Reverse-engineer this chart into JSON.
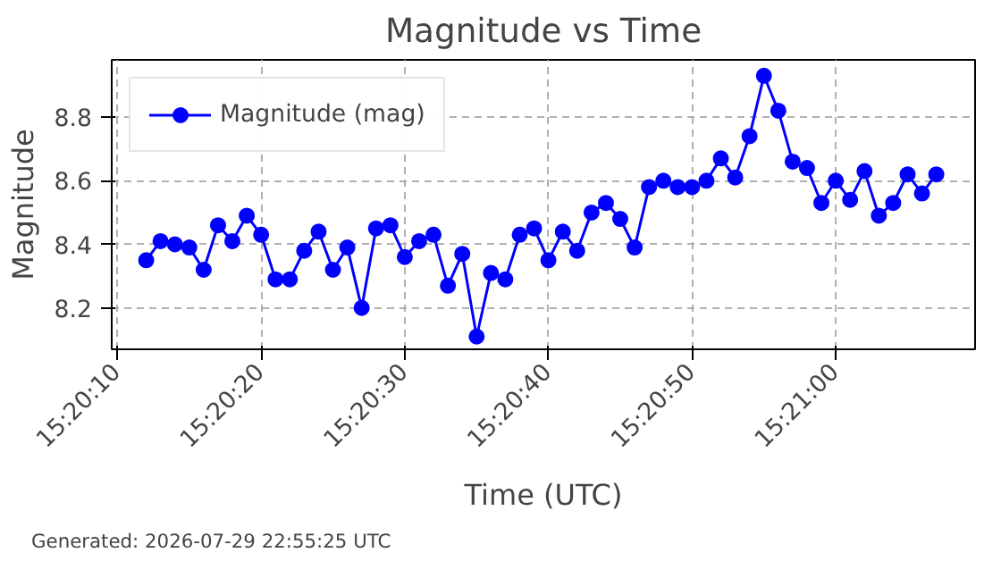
{
  "chart_data": {
    "type": "line",
    "title": "Magnitude vs Time",
    "xlabel": "Time (UTC)",
    "ylabel": "Magnitude",
    "annotations": [
      "Generated: 2026-07-29 22:55:25 UTC"
    ],
    "x": [
      15.336667,
      15.336944,
      15.337222,
      15.3375,
      15.337778,
      15.338056,
      15.338333,
      15.338611,
      15.338889,
      15.339167,
      15.339444,
      15.339722,
      15.34,
      15.340278,
      15.340556,
      15.340833,
      15.341111,
      15.341389,
      15.341667,
      15.341944,
      15.342222,
      15.3425,
      15.342778,
      15.343056,
      15.343333,
      15.343611,
      15.343889,
      15.344167,
      15.344444,
      15.344722,
      15.345,
      15.345278,
      15.345556,
      15.345833,
      15.346111,
      15.346389,
      15.346667,
      15.346944,
      15.347222,
      15.3475,
      15.347778,
      15.348056,
      15.348333,
      15.348611,
      15.348889,
      15.349167,
      15.349444,
      15.349722,
      15.35,
      15.350278,
      15.350556,
      15.350833,
      15.351111,
      15.351389,
      15.351667,
      15.351944
    ],
    "series": [
      {
        "name": "Magnitude (mag)",
        "color": "#0000ff",
        "values": [
          8.35,
          8.41,
          8.4,
          8.39,
          8.32,
          8.46,
          8.41,
          8.49,
          8.43,
          8.29,
          8.29,
          8.38,
          8.44,
          8.32,
          8.39,
          8.2,
          8.45,
          8.46,
          8.36,
          8.41,
          8.43,
          8.27,
          8.37,
          8.11,
          8.31,
          8.29,
          8.43,
          8.45,
          8.35,
          8.44,
          8.38,
          8.5,
          8.53,
          8.48,
          8.39,
          8.58,
          8.6,
          8.58,
          8.58,
          8.6,
          8.67,
          8.61,
          8.74,
          8.93,
          8.82,
          8.66,
          8.64,
          8.53,
          8.6,
          8.54,
          8.63,
          8.49,
          8.53,
          8.62,
          8.56,
          8.62
        ]
      }
    ],
    "xlim": [
      15.336,
      15.352694
    ],
    "ylim": [
      8.07,
      8.98
    ],
    "xticks": [
      {
        "value": 15.336111,
        "label": "15:20:10"
      },
      {
        "value": 15.338889,
        "label": "15:20:20"
      },
      {
        "value": 15.341667,
        "label": "15:20:30"
      },
      {
        "value": 15.344444,
        "label": "15:20:40"
      },
      {
        "value": 15.347222,
        "label": "15:20:50"
      },
      {
        "value": 15.35,
        "label": "15:21:00"
      }
    ],
    "yticks": [
      {
        "value": 8.2,
        "label": "8.2"
      },
      {
        "value": 8.4,
        "label": "8.4"
      },
      {
        "value": 8.6,
        "label": "8.6"
      },
      {
        "value": 8.8,
        "label": "8.8"
      }
    ],
    "grid": true,
    "legend": "top left",
    "marker": "circle",
    "line_style": "solid"
  }
}
